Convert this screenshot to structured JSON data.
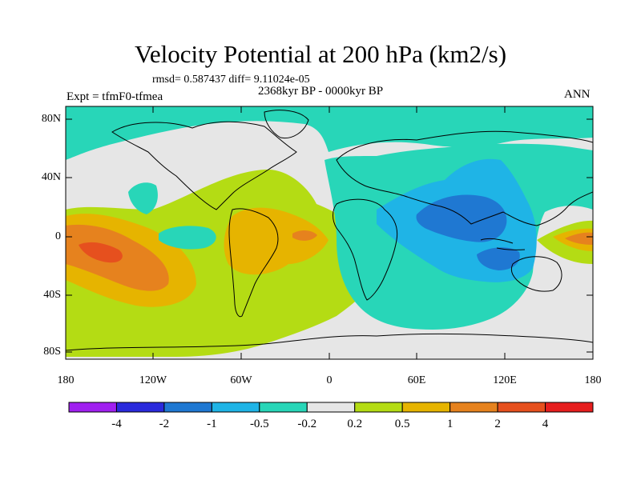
{
  "title": "Velocity Potential at 200 hPa (km2/s)",
  "stats_line": "rmsd= 0.587437 diff= 9.11024e-05",
  "period": "2368kyr BP - 0000kyr BP",
  "experiment": "Expt = tfmF0-tfmea",
  "season": "ANN",
  "lat_labels": [
    "80N",
    "40N",
    "0",
    "40S",
    "80S"
  ],
  "lon_labels": [
    "180",
    "120W",
    "60W",
    "0",
    "60E",
    "120E",
    "180"
  ],
  "colorbar": {
    "labels": [
      "-4",
      "-2",
      "-1",
      "-0.5",
      "-0.2",
      "0.2",
      "0.5",
      "1",
      "2",
      "4"
    ],
    "colors": [
      "#a020f0",
      "#2a2adc",
      "#1f78d2",
      "#1fb4e6",
      "#28d6b8",
      "#e6e6e6",
      "#b4dc14",
      "#e6b400",
      "#e6821e",
      "#e6501e",
      "#e61e1e"
    ]
  },
  "palette": {
    "neutral": "#e6e6e6",
    "teal": "#28d6b8",
    "cyan": "#1fb4e6",
    "blue": "#1f78d2",
    "lime": "#b4dc14",
    "yellow": "#e6b400",
    "orange": "#e6821e",
    "red": "#e6501e"
  }
}
